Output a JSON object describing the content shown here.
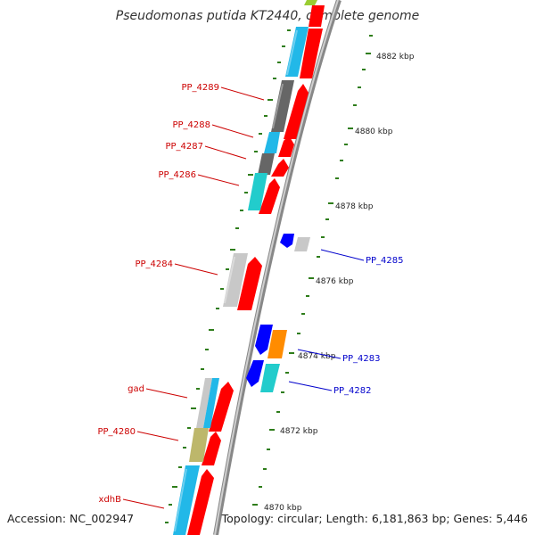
{
  "title": "Pseudomonas putida KT2440, complete genome",
  "footer": {
    "accession": "Accession: NC_002947",
    "summary": "Topology: circular; Length: 6,181,863 bp; Genes: 5,446"
  },
  "ruler_labels": [
    "4882 kbp",
    "4880 kbp",
    "4878 kbp",
    "4876 kbp",
    "4874 kbp",
    "4872 kbp",
    "4870 kbp"
  ],
  "gene_labels": {
    "left": [
      "PP_4289",
      "PP_4288",
      "PP_4287",
      "PP_4286",
      "PP_4284",
      "gad",
      "PP_4280",
      "xdhB"
    ],
    "right": [
      "PP_4285",
      "PP_4283",
      "PP_4282"
    ]
  },
  "colors": {
    "red_track": "#ff0000",
    "cyan": "#22b8e8",
    "teal": "#22cccc",
    "dark_gray": "#666666",
    "light_gray": "#c8c8c8",
    "khaki": "#bdb76b",
    "blue": "#0000ff",
    "orange": "#ff8c00",
    "backbone": "#999999",
    "tick": "#2e7d1a",
    "label_red": "#cc0000",
    "label_blue": "#0000cc"
  }
}
